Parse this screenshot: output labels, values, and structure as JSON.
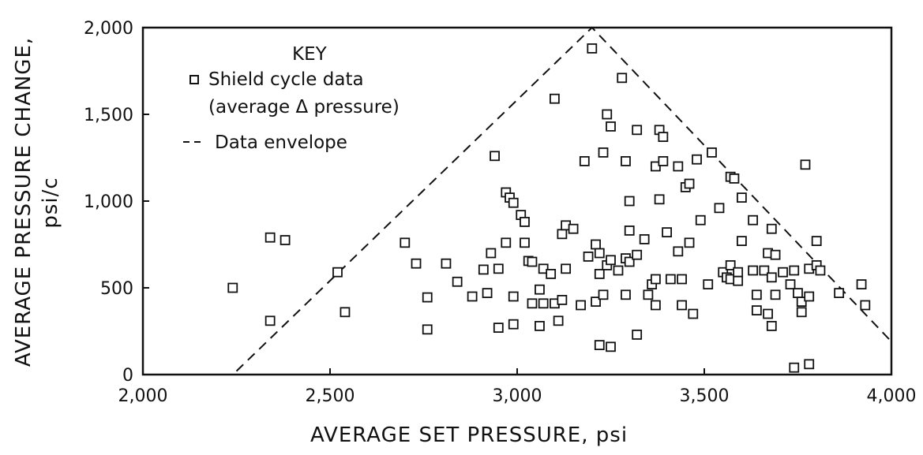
{
  "chart_data": {
    "type": "scatter",
    "xlabel": "AVERAGE SET PRESSURE, psi",
    "ylabel_line1": "AVERAGE PRESSURE CHANGE,",
    "ylabel_line2": "psi/c",
    "xlim": [
      2000,
      4000
    ],
    "ylim": [
      0,
      2000
    ],
    "x_ticks": [
      2000,
      2500,
      3000,
      3500,
      4000
    ],
    "x_tick_labels": [
      "2,000",
      "2,500",
      "3,000",
      "3,500",
      "4,000"
    ],
    "y_ticks": [
      0,
      500,
      1000,
      1500,
      2000
    ],
    "y_tick_labels": [
      "0",
      "500",
      "1,000",
      "1,500",
      "2,000"
    ],
    "grid": false,
    "legend": {
      "placement": "top-left",
      "title": "KEY",
      "marker_label_line1": "Shield cycle data",
      "marker_label_line2": "(average Δ pressure)",
      "line_label": "Data envelope"
    },
    "envelope": [
      [
        2250,
        20
      ],
      [
        3200,
        2000
      ],
      [
        4000,
        190
      ]
    ],
    "points": [
      [
        2240,
        500
      ],
      [
        2340,
        790
      ],
      [
        2380,
        775
      ],
      [
        2340,
        310
      ],
      [
        2520,
        590
      ],
      [
        2540,
        360
      ],
      [
        2700,
        760
      ],
      [
        2730,
        640
      ],
      [
        2760,
        445
      ],
      [
        2760,
        260
      ],
      [
        2810,
        640
      ],
      [
        2840,
        535
      ],
      [
        2880,
        450
      ],
      [
        2910,
        605
      ],
      [
        2920,
        470
      ],
      [
        2930,
        700
      ],
      [
        2940,
        1260
      ],
      [
        2950,
        610
      ],
      [
        2950,
        270
      ],
      [
        2970,
        1050
      ],
      [
        2970,
        760
      ],
      [
        2980,
        1020
      ],
      [
        2990,
        990
      ],
      [
        2990,
        450
      ],
      [
        2990,
        290
      ],
      [
        3010,
        920
      ],
      [
        3020,
        880
      ],
      [
        3020,
        760
      ],
      [
        3030,
        655
      ],
      [
        3040,
        650
      ],
      [
        3040,
        410
      ],
      [
        3060,
        490
      ],
      [
        3060,
        280
      ],
      [
        3070,
        410
      ],
      [
        3070,
        610
      ],
      [
        3090,
        580
      ],
      [
        3100,
        1590
      ],
      [
        3100,
        410
      ],
      [
        3110,
        310
      ],
      [
        3120,
        810
      ],
      [
        3120,
        430
      ],
      [
        3130,
        860
      ],
      [
        3130,
        610
      ],
      [
        3150,
        840
      ],
      [
        3170,
        400
      ],
      [
        3180,
        1230
      ],
      [
        3190,
        680
      ],
      [
        3200,
        1880
      ],
      [
        3210,
        750
      ],
      [
        3210,
        420
      ],
      [
        3220,
        700
      ],
      [
        3220,
        580
      ],
      [
        3220,
        170
      ],
      [
        3230,
        1280
      ],
      [
        3230,
        460
      ],
      [
        3240,
        1500
      ],
      [
        3240,
        630
      ],
      [
        3250,
        1430
      ],
      [
        3250,
        660
      ],
      [
        3250,
        160
      ],
      [
        3270,
        600
      ],
      [
        3280,
        1710
      ],
      [
        3290,
        1230
      ],
      [
        3290,
        670
      ],
      [
        3290,
        460
      ],
      [
        3300,
        1000
      ],
      [
        3300,
        830
      ],
      [
        3300,
        650
      ],
      [
        3320,
        1410
      ],
      [
        3320,
        690
      ],
      [
        3320,
        230
      ],
      [
        3340,
        780
      ],
      [
        3350,
        460
      ],
      [
        3360,
        520
      ],
      [
        3370,
        1200
      ],
      [
        3370,
        550
      ],
      [
        3370,
        400
      ],
      [
        3380,
        1410
      ],
      [
        3380,
        1010
      ],
      [
        3390,
        1370
      ],
      [
        3390,
        1230
      ],
      [
        3400,
        820
      ],
      [
        3410,
        550
      ],
      [
        3430,
        1200
      ],
      [
        3430,
        710
      ],
      [
        3440,
        550
      ],
      [
        3440,
        400
      ],
      [
        3450,
        1080
      ],
      [
        3460,
        1100
      ],
      [
        3460,
        760
      ],
      [
        3470,
        350
      ],
      [
        3480,
        1240
      ],
      [
        3490,
        890
      ],
      [
        3510,
        520
      ],
      [
        3520,
        1280
      ],
      [
        3540,
        960
      ],
      [
        3550,
        590
      ],
      [
        3560,
        560
      ],
      [
        3570,
        630
      ],
      [
        3570,
        550
      ],
      [
        3570,
        1140
      ],
      [
        3580,
        1130
      ],
      [
        3590,
        590
      ],
      [
        3590,
        540
      ],
      [
        3600,
        1020
      ],
      [
        3600,
        770
      ],
      [
        3630,
        890
      ],
      [
        3630,
        600
      ],
      [
        3640,
        460
      ],
      [
        3640,
        370
      ],
      [
        3660,
        600
      ],
      [
        3670,
        350
      ],
      [
        3670,
        700
      ],
      [
        3680,
        840
      ],
      [
        3680,
        560
      ],
      [
        3680,
        280
      ],
      [
        3690,
        690
      ],
      [
        3690,
        460
      ],
      [
        3710,
        590
      ],
      [
        3730,
        520
      ],
      [
        3740,
        600
      ],
      [
        3740,
        40
      ],
      [
        3750,
        470
      ],
      [
        3760,
        420
      ],
      [
        3760,
        360
      ],
      [
        3770,
        1210
      ],
      [
        3780,
        450
      ],
      [
        3780,
        610
      ],
      [
        3780,
        60
      ],
      [
        3800,
        630
      ],
      [
        3800,
        770
      ],
      [
        3810,
        600
      ],
      [
        3860,
        470
      ],
      [
        3920,
        520
      ],
      [
        3930,
        400
      ]
    ]
  }
}
